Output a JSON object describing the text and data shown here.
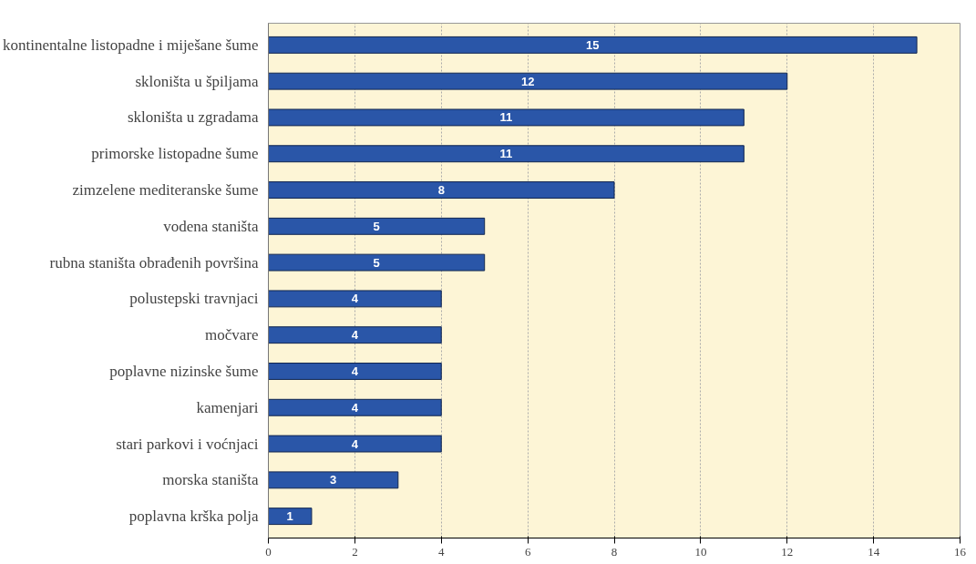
{
  "chart_data": {
    "type": "bar",
    "orientation": "horizontal",
    "categories": [
      "kontinentalne listopadne i miješane šume",
      "skloništa u špiljama",
      "skloništa u zgradama",
      "primorske listopadne šume",
      "zimzelene mediteranske šume",
      "vodena staništa",
      "rubna staništa obrađenih površina",
      "polustepski travnjaci",
      "močvare",
      "poplavne nizinske šume",
      "kamenjari",
      "stari parkovi i voćnjaci",
      "morska staništa",
      "poplavna krška polja"
    ],
    "values": [
      15,
      12,
      11,
      11,
      8,
      5,
      5,
      4,
      4,
      4,
      4,
      4,
      3,
      1
    ],
    "color": "#2a56a8",
    "xlim": [
      0,
      16
    ],
    "xticks": [
      0,
      2,
      4,
      6,
      8,
      10,
      12,
      14,
      16
    ],
    "grid": "x",
    "data_labels": true
  }
}
